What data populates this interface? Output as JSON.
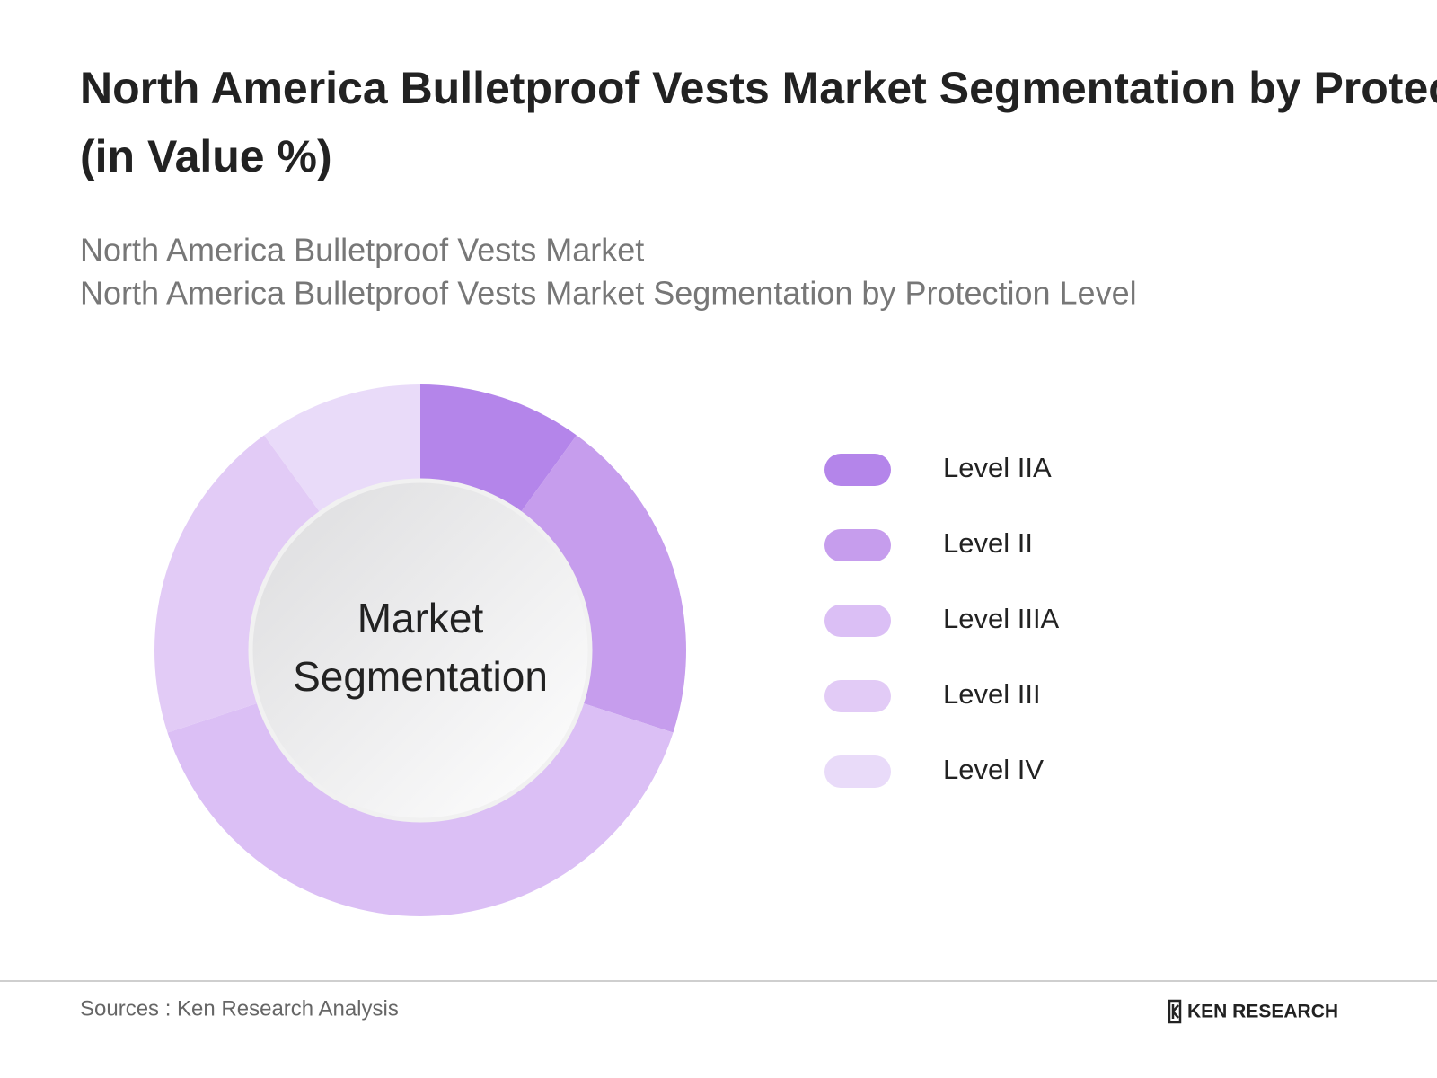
{
  "chart_data": {
    "type": "donut",
    "title": "North America Bulletproof Vests Market Segmentation by Protection Level (in Value %)",
    "subtitle": [
      "North America Bulletproof Vests Market",
      "North America Bulletproof Vests Market Segmentation by Protection Level"
    ],
    "center_label": [
      "Market",
      "Segmentation"
    ],
    "categories": [
      "Level IIA",
      "Level II",
      "Level IIIA",
      "Level III",
      "Level IV"
    ],
    "values": [
      10,
      20,
      40,
      20,
      10
    ],
    "colors": [
      "#b485ea",
      "#c69ded",
      "#dbbff5",
      "#e2cbf6",
      "#e9dbf9"
    ],
    "legend": "right"
  },
  "footer": {
    "source": "Sources : Ken Research Analysis",
    "logo": "KEN RESEARCH"
  }
}
